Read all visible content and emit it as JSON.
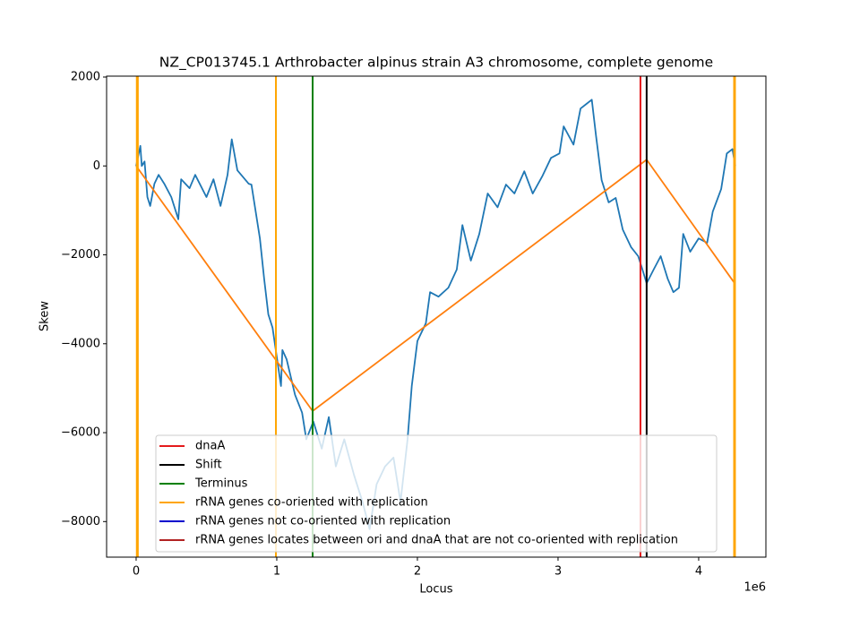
{
  "chart_data": {
    "type": "line",
    "title": "NZ_CP013745.1 Arthrobacter alpinus strain A3 chromosome, complete genome",
    "xlabel": "Locus",
    "ylabel": "Skew",
    "x_offset_label": "1e6",
    "xlim": [
      -210000,
      4478000
    ],
    "ylim": [
      -8800,
      2020
    ],
    "xticks": [
      {
        "value": 0,
        "label": "0"
      },
      {
        "value": 1000000,
        "label": "1"
      },
      {
        "value": 2000000,
        "label": "2"
      },
      {
        "value": 3000000,
        "label": "3"
      },
      {
        "value": 4000000,
        "label": "4"
      }
    ],
    "yticks": [
      {
        "value": -8000,
        "label": "−8000"
      },
      {
        "value": -6000,
        "label": "−6000"
      },
      {
        "value": -4000,
        "label": "−4000"
      },
      {
        "value": -2000,
        "label": "−2000"
      },
      0,
      2000
    ],
    "legend": "lower center",
    "series": [
      {
        "color": "#1f77b4",
        "x": [
          0,
          20000,
          30000,
          40000,
          60000,
          80000,
          100000,
          130000,
          160000,
          200000,
          250000,
          300000,
          320000,
          380000,
          420000,
          500000,
          550000,
          600000,
          650000,
          680000,
          720000,
          800000,
          820000,
          880000,
          910000,
          940000,
          970000,
          1030000,
          1040000,
          1070000,
          1130000,
          1180000,
          1210000,
          1260000,
          1320000,
          1370000,
          1420000,
          1480000,
          1550000,
          1610000,
          1660000,
          1710000,
          1770000,
          1830000,
          1880000,
          1930000,
          1960000,
          2000000,
          2060000,
          2090000,
          2150000,
          2220000,
          2280000,
          2320000,
          2380000,
          2440000,
          2500000,
          2570000,
          2630000,
          2690000,
          2760000,
          2820000,
          2890000,
          2950000,
          3010000,
          3040000,
          3110000,
          3160000,
          3200000,
          3240000,
          3270000,
          3310000,
          3360000,
          3410000,
          3460000,
          3520000,
          3570000,
          3600000,
          3630000,
          3680000,
          3730000,
          3780000,
          3820000,
          3860000,
          3890000,
          3940000,
          4000000,
          4060000,
          4100000,
          4160000,
          4200000,
          4240000,
          4260000
        ],
        "values": [
          0,
          300,
          450,
          0,
          100,
          -700,
          -900,
          -400,
          -200,
          -400,
          -700,
          -1200,
          -300,
          -500,
          -200,
          -700,
          -300,
          -900,
          -200,
          600,
          -100,
          -400,
          -420,
          -1630,
          -2530,
          -3340,
          -3640,
          -4950,
          -4140,
          -4350,
          -5150,
          -5550,
          -6150,
          -5750,
          -6360,
          -5650,
          -6760,
          -6150,
          -6960,
          -7560,
          -8170,
          -7160,
          -6760,
          -6560,
          -7560,
          -6150,
          -4950,
          -3940,
          -3540,
          -2840,
          -2940,
          -2740,
          -2330,
          -1330,
          -2130,
          -1530,
          -620,
          -930,
          -420,
          -620,
          -120,
          -620,
          -220,
          180,
          280,
          890,
          480,
          1290,
          1390,
          1490,
          680,
          -320,
          -820,
          -720,
          -1430,
          -1830,
          -2030,
          -2330,
          -2640,
          -2330,
          -2030,
          -2540,
          -2840,
          -2740,
          -1530,
          -1930,
          -1630,
          -1730,
          -1030,
          -520,
          280,
          380,
          0
        ]
      },
      {
        "color": "#ff7f0e",
        "x": [
          0,
          1255000,
          3630000,
          4255000
        ],
        "values": [
          0,
          -5513,
          141,
          -2636
        ]
      }
    ],
    "vlines": [
      {
        "name": "dnaA",
        "color": "#e41a1c",
        "x": [
          3586000
        ]
      },
      {
        "name": "Shift",
        "color": "#000000",
        "x": [
          3630000
        ]
      },
      {
        "name": "Terminus",
        "color": "#008000",
        "x": [
          1255000
        ]
      },
      {
        "name": "rRNA genes co-oriented with replication",
        "color": "#ffa500",
        "x": [
          5000,
          12000,
          994000,
          4252000,
          4258000
        ]
      },
      {
        "name": "rRNA genes not co-oriented with replication",
        "color": "#0000cd",
        "x": []
      },
      {
        "name": "rRNA genes locates between ori and dnaA that are not co-oriented with replication",
        "color": "#b22222",
        "x": []
      }
    ]
  }
}
